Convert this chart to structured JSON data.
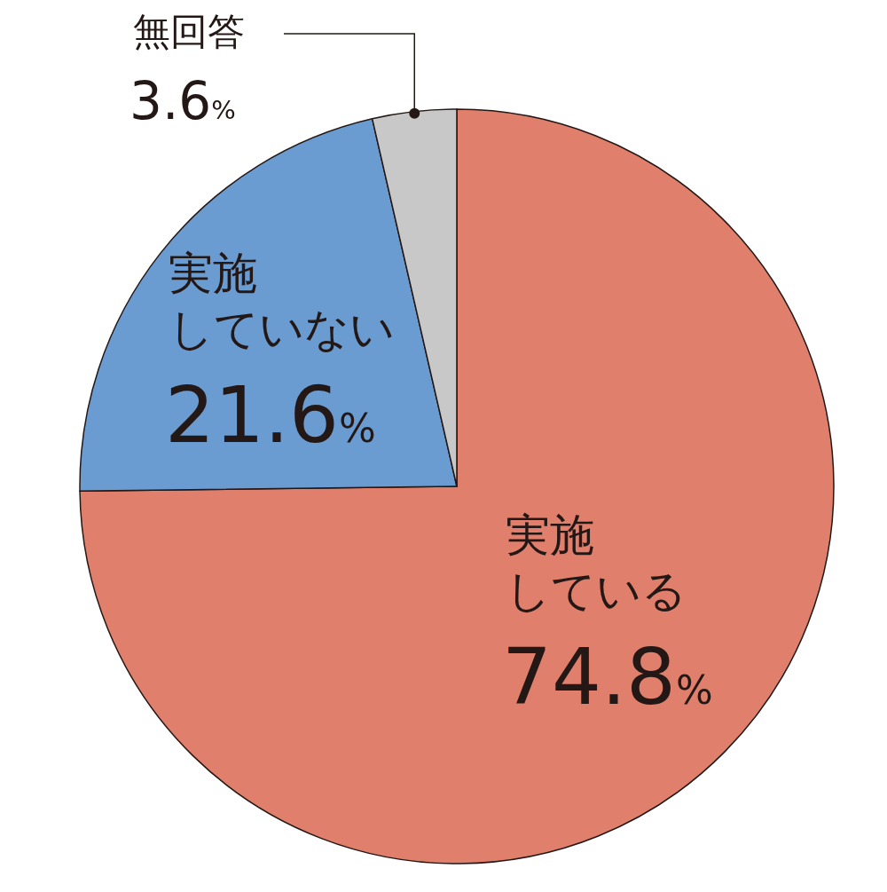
{
  "chart_data": {
    "type": "pie",
    "categories": [
      "実施している",
      "実施していない",
      "無回答"
    ],
    "values": [
      74.8,
      21.6,
      3.6
    ],
    "colors": [
      "#e07f6c",
      "#6a9bd1",
      "#c8c8c8"
    ],
    "value_labels": [
      "74.8%",
      "21.6%",
      "3.6%"
    ]
  }
}
